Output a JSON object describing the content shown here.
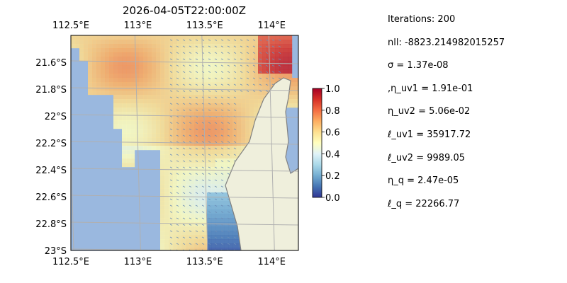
{
  "chart_data": {
    "type": "heatmap",
    "title": "2026-04-05T22:00:00Z",
    "x_ticks": [
      "112.5°E",
      "113°E",
      "113.5°E",
      "114°E"
    ],
    "x_tick_values": [
      112.5,
      113.0,
      113.5,
      114.0
    ],
    "y_ticks": [
      "21.6°S",
      "21.8°S",
      "22°S",
      "22.2°S",
      "22.4°S",
      "22.6°S",
      "22.8°S",
      "23°S"
    ],
    "y_tick_values": [
      -21.6,
      -21.8,
      -22.0,
      -22.2,
      -22.4,
      -22.6,
      -22.8,
      -23.0
    ],
    "xlim": [
      112.5,
      114.2
    ],
    "ylim": [
      -23.0,
      -21.4
    ],
    "grid": true,
    "colorbar": {
      "ticks": [
        "0.0",
        "0.2",
        "0.4",
        "0.6",
        "0.8",
        "1.0"
      ],
      "tick_values": [
        0.0,
        0.2,
        0.4,
        0.6,
        0.8,
        1.0
      ],
      "range": [
        0,
        1
      ],
      "colormap": "RdYlBu_r",
      "colors": [
        "#313695",
        "#4575b4",
        "#74add1",
        "#abd9e9",
        "#e0f3f8",
        "#ffffbf",
        "#fee090",
        "#fdae61",
        "#f46d43",
        "#d73027",
        "#a50026"
      ]
    },
    "ocean_color": "#9ab8df",
    "land_color": "#efefdc"
  },
  "annotations": [
    "Iterations: 200",
    "nll: -8823.214982015257",
    "σ = 1.37e-08",
    ",η_uv1 = 1.91e-01",
    "η_uv2 = 5.06e-02",
    "ℓ_uv1 = 35917.72",
    "ℓ_uv2 = 9989.05",
    "η_q = 2.47e-05",
    "ℓ_q = 22266.77"
  ]
}
